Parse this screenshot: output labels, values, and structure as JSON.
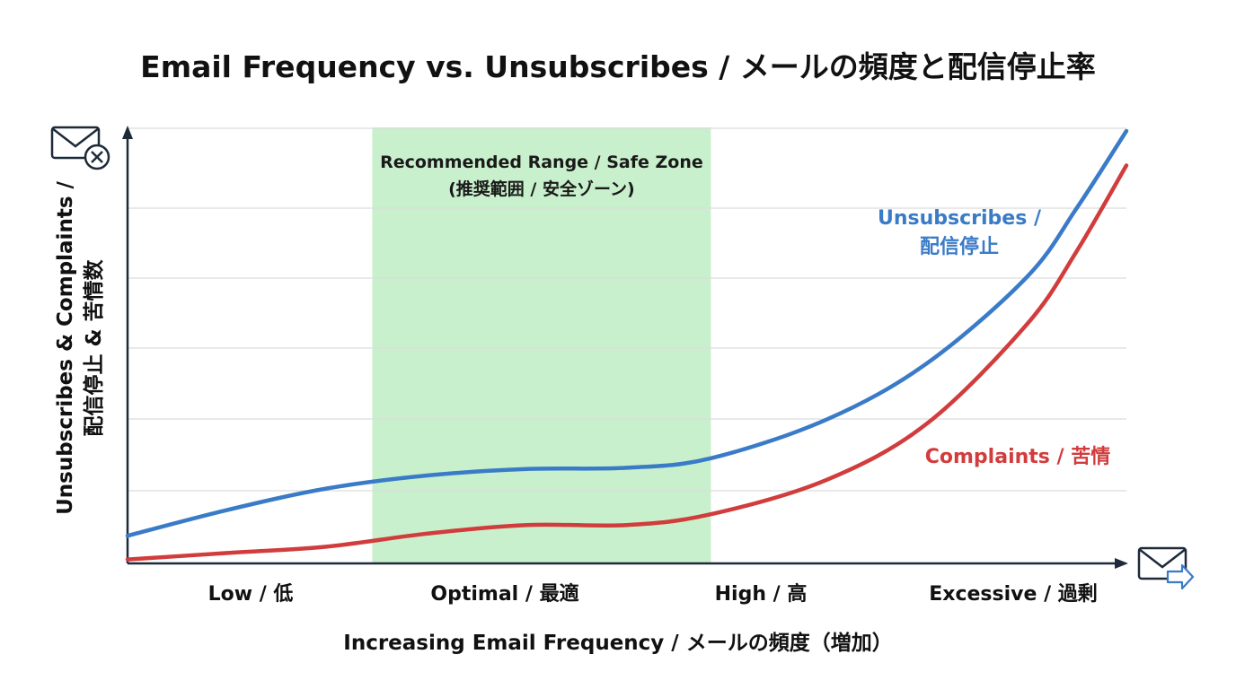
{
  "chart_data": {
    "type": "line",
    "title": "Email Frequency vs. Unsubscribes / メールの頻度と配信停止率",
    "xlabel": "Increasing Email Frequency / メールの頻度（増加）",
    "ylabel_line1": "Unsubscribes & Complaints /",
    "ylabel_line2": "配信停止 & 苦情数",
    "categories": [
      "Low / 低",
      "Optimal / 最適",
      "High / 高",
      "Excessive / 過剰"
    ],
    "xlim": [
      0,
      1
    ],
    "ylim": [
      0,
      100
    ],
    "grid": true,
    "recommended_zone": {
      "label_line1": "Recommended Range / Safe Zone",
      "label_line2": "(推奨範囲 / 安全ゾーン)",
      "x_start": 0.245,
      "x_end": 0.584,
      "color": "#c9f0cc"
    },
    "series": [
      {
        "name": "Unsubscribes / 配信停止",
        "label_line1": "Unsubscribes /",
        "label_line2": "配信停止",
        "color": "#3a7bc8",
        "x": [
          0,
          0.1,
          0.2,
          0.3,
          0.4,
          0.5,
          0.584,
          0.7,
          0.8,
          0.9,
          0.95,
          1.0
        ],
        "y": [
          6,
          12,
          17,
          20,
          21.5,
          21.8,
          24,
          33,
          46,
          66,
          82,
          100
        ]
      },
      {
        "name": "Complaints / 苦情",
        "label_line1": "Complaints / 苦情",
        "color": "#d13c3c",
        "x": [
          0,
          0.1,
          0.2,
          0.3,
          0.4,
          0.5,
          0.584,
          0.7,
          0.8,
          0.9,
          0.95,
          1.0
        ],
        "y": [
          0.5,
          2,
          3.5,
          6.5,
          8.5,
          8.5,
          11,
          19,
          32,
          55,
          72,
          92
        ]
      }
    ]
  },
  "icons": {
    "top": "mail-unsubscribe-icon",
    "bottom": "mail-send-icon"
  }
}
